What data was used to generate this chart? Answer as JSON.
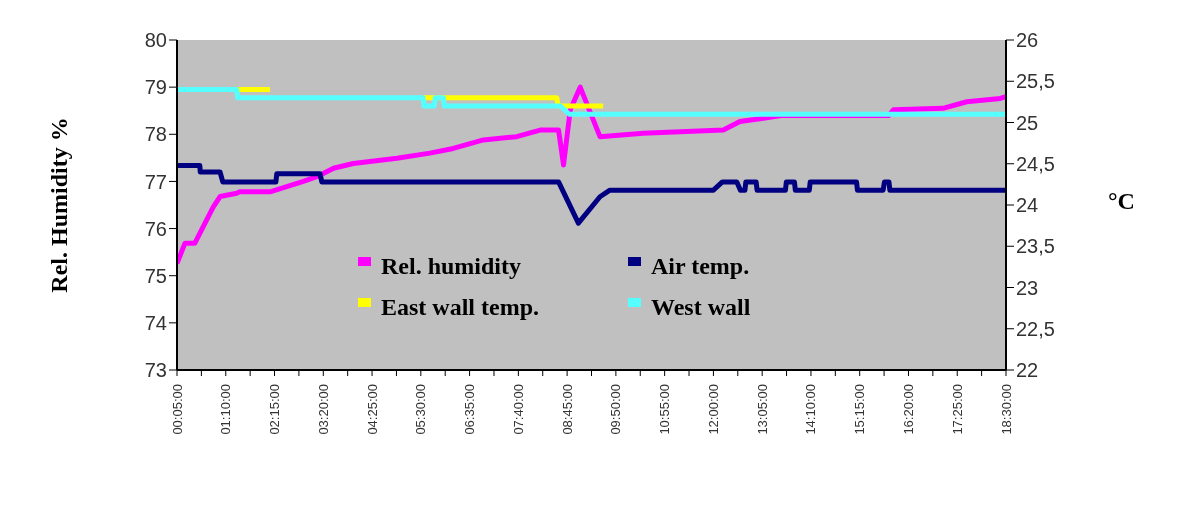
{
  "chart_data": {
    "type": "line",
    "ylabel": "Rel. Humidity %",
    "y2label": "°C",
    "xlim": [
      0.0833,
      18.5
    ],
    "xticks": [
      {
        "value": 0.0833,
        "label": "00:05:00"
      },
      {
        "value": 0.625,
        "label": null
      },
      {
        "value": 1.1667,
        "label": "01:10:00"
      },
      {
        "value": 1.7083,
        "label": null
      },
      {
        "value": 2.25,
        "label": "02:15:00"
      },
      {
        "value": 2.7917,
        "label": null
      },
      {
        "value": 3.3333,
        "label": "03:20:00"
      },
      {
        "value": 3.875,
        "label": null
      },
      {
        "value": 4.4167,
        "label": "04:25:00"
      },
      {
        "value": 4.9583,
        "label": null
      },
      {
        "value": 5.5,
        "label": "05:30:00"
      },
      {
        "value": 6.0417,
        "label": null
      },
      {
        "value": 6.5833,
        "label": "06:35:00"
      },
      {
        "value": 7.125,
        "label": null
      },
      {
        "value": 7.6667,
        "label": "07:40:00"
      },
      {
        "value": 8.2083,
        "label": null
      },
      {
        "value": 8.75,
        "label": "08:45:00"
      },
      {
        "value": 9.2917,
        "label": null
      },
      {
        "value": 9.8333,
        "label": "09:50:00"
      },
      {
        "value": 10.375,
        "label": null
      },
      {
        "value": 10.9167,
        "label": "10:55:00"
      },
      {
        "value": 11.4583,
        "label": null
      },
      {
        "value": 12,
        "label": "12:00:00"
      },
      {
        "value": 12.5417,
        "label": null
      },
      {
        "value": 13.0833,
        "label": "13:05:00"
      },
      {
        "value": 13.625,
        "label": null
      },
      {
        "value": 14.1667,
        "label": "14:10:00"
      },
      {
        "value": 14.7083,
        "label": null
      },
      {
        "value": 15.25,
        "label": "15:15:00"
      },
      {
        "value": 15.7917,
        "label": null
      },
      {
        "value": 16.3333,
        "label": "16:20:00"
      },
      {
        "value": 16.875,
        "label": null
      },
      {
        "value": 17.4167,
        "label": "17:25:00"
      },
      {
        "value": 17.9583,
        "label": null
      },
      {
        "value": 18.5,
        "label": "18:30:00"
      }
    ],
    "ylim": [
      73,
      80
    ],
    "yticks": [
      73,
      74,
      75,
      76,
      77,
      78,
      79,
      80
    ],
    "y2lim": [
      22,
      26
    ],
    "y2ticks": [
      22,
      {
        "value": 22.5,
        "label": "22,5"
      },
      23,
      {
        "value": 23.5,
        "label": "23,5"
      },
      24,
      {
        "value": 24.5,
        "label": "24,5"
      },
      25,
      {
        "value": 25.5,
        "label": "25,5"
      },
      26
    ],
    "grid": false,
    "legend": "bottom",
    "marker": "none",
    "line_style": "solid",
    "series": [
      {
        "name": "Rel. humidity",
        "color": "#ff00ff",
        "x": [
          0.0833,
          0.26,
          0.48,
          0.89,
          1.04,
          1.41,
          1.48,
          2.15,
          2.52,
          2.89,
          3.19,
          3.56,
          4.0,
          4.97,
          5.7,
          6.22,
          6.89,
          7.63,
          8.15,
          8.56,
          8.67,
          8.82,
          9.04,
          9.48,
          10.44,
          12.22,
          12.59,
          13.11,
          13.5,
          15.9,
          16.0,
          17.1,
          17.63,
          18.37,
          18.5
        ],
        "values": [
          75.26,
          75.69,
          75.69,
          76.46,
          76.68,
          76.75,
          76.78,
          76.78,
          76.89,
          77.0,
          77.1,
          77.28,
          77.38,
          77.49,
          77.6,
          77.7,
          77.88,
          77.95,
          78.09,
          78.09,
          77.35,
          78.52,
          79.0,
          77.95,
          78.02,
          78.09,
          78.27,
          78.34,
          78.4,
          78.4,
          78.52,
          78.55,
          78.69,
          78.76,
          78.8
        ]
      },
      {
        "name": "Air temp.",
        "color": "#000080",
        "axis": "y2",
        "x": [
          0.0833,
          0.59,
          0.6,
          1.04,
          1.1,
          2.28,
          2.3,
          3.26,
          3.3,
          8.56,
          9.0,
          9.48,
          9.7,
          12.0,
          12.2,
          12.52,
          12.6,
          12.7,
          12.72,
          12.95,
          12.97,
          13.6,
          13.62,
          13.8,
          13.82,
          14.13,
          14.15,
          15.18,
          15.2,
          15.77,
          15.8,
          15.9,
          15.92,
          18.5
        ],
        "values": [
          24.48,
          24.48,
          24.4,
          24.4,
          24.28,
          24.28,
          24.38,
          24.38,
          24.28,
          24.28,
          23.78,
          24.1,
          24.18,
          24.18,
          24.28,
          24.28,
          24.18,
          24.18,
          24.28,
          24.28,
          24.18,
          24.18,
          24.28,
          24.28,
          24.18,
          24.18,
          24.28,
          24.28,
          24.18,
          24.18,
          24.28,
          24.28,
          24.18,
          24.18
        ]
      },
      {
        "name": "East wall temp.",
        "color": "#ffff00",
        "axis": "y2",
        "x": [
          1.43,
          2.15,
          2.17,
          5.57,
          8.52,
          8.55,
          9.55
        ],
        "values": [
          25.4,
          25.4,
          null,
          25.3,
          25.3,
          25.2,
          25.2
        ]
      },
      {
        "name": "West wall",
        "color": "#55ffff",
        "axis": "y2",
        "x": [
          0.0833,
          1.41,
          1.43,
          5.55,
          5.57,
          5.8,
          5.82,
          6.0,
          6.02,
          8.6,
          8.8,
          18.5
        ],
        "values": [
          25.4,
          25.4,
          25.3,
          25.3,
          25.2,
          25.2,
          25.3,
          25.3,
          25.2,
          25.2,
          25.1,
          25.1
        ]
      }
    ]
  }
}
